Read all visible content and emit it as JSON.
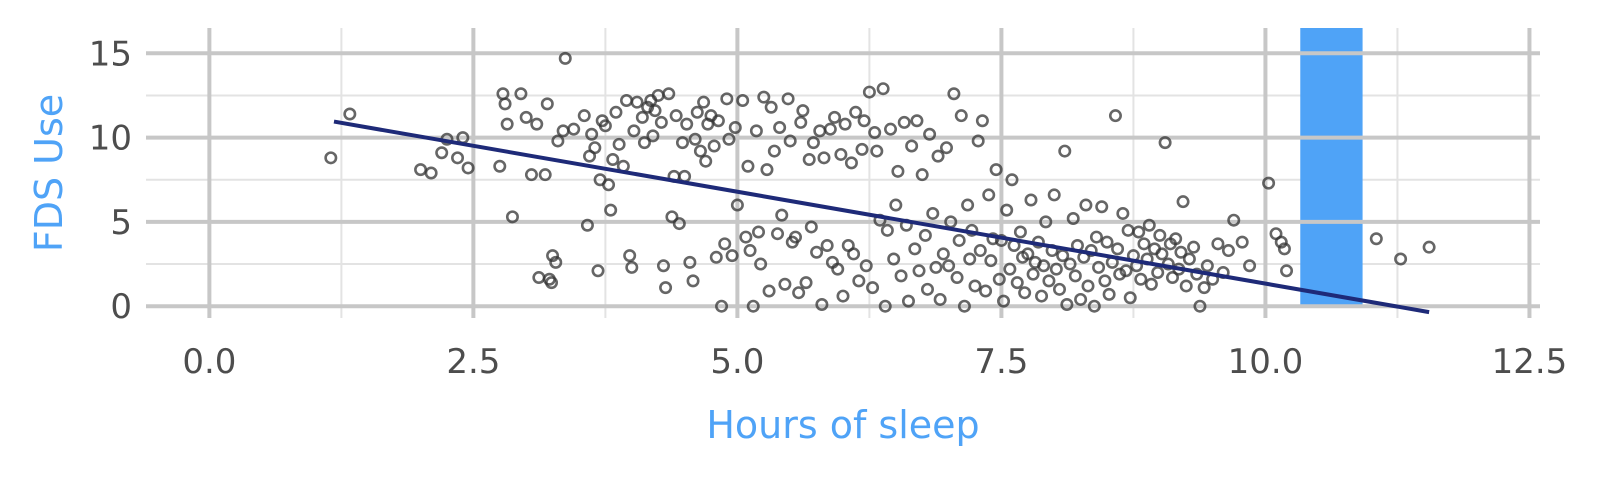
{
  "colors": {
    "axis_title": "#4FA3F7",
    "highlight_band": "#4FA3F7",
    "trend_line": "#1E2A78",
    "points": "#333333",
    "grid_major": "#c7c7c7",
    "grid_minor": "#e3e3e3",
    "tick_text": "#4d4d4d"
  },
  "chart_data": {
    "type": "scatter",
    "title": "",
    "xlabel": "Hours of sleep",
    "ylabel": "FDS Use",
    "xlim": [
      -0.6,
      12.6
    ],
    "ylim": [
      -0.7,
      16.5
    ],
    "x_ticks": [
      0,
      2.5,
      5,
      7.5,
      10,
      12.5
    ],
    "x_tick_labels": [
      "0.0",
      "2.5",
      "5.0",
      "7.5",
      "10.0",
      "12.5"
    ],
    "y_ticks": [
      0,
      5,
      10,
      15
    ],
    "y_tick_labels": [
      "0",
      "5",
      "10",
      "15"
    ],
    "x_minor_ticks": [
      1.25,
      3.75,
      6.25,
      8.75,
      11.25
    ],
    "y_minor_ticks": [
      2.5,
      7.5,
      12.5
    ],
    "grid": true,
    "legend": "none",
    "highlight_band": {
      "x_start": 10.33,
      "x_end": 10.92,
      "y_start": 0,
      "y_end": 16.5
    },
    "trend_line": {
      "x": [
        1.18,
        11.55
      ],
      "y": [
        10.95,
        -0.35
      ]
    },
    "points": [
      [
        1.15,
        8.8
      ],
      [
        1.33,
        11.4
      ],
      [
        2.0,
        8.1
      ],
      [
        2.1,
        7.9
      ],
      [
        2.2,
        9.1
      ],
      [
        2.25,
        9.9
      ],
      [
        2.35,
        8.8
      ],
      [
        2.4,
        10.0
      ],
      [
        2.45,
        8.2
      ],
      [
        2.75,
        8.3
      ],
      [
        2.78,
        12.6
      ],
      [
        2.8,
        12.0
      ],
      [
        2.82,
        10.8
      ],
      [
        2.87,
        5.3
      ],
      [
        2.95,
        12.6
      ],
      [
        3.0,
        11.2
      ],
      [
        3.05,
        7.8
      ],
      [
        3.1,
        10.8
      ],
      [
        3.12,
        1.7
      ],
      [
        3.18,
        7.8
      ],
      [
        3.2,
        12.0
      ],
      [
        3.22,
        1.6
      ],
      [
        3.24,
        1.4
      ],
      [
        3.25,
        3.0
      ],
      [
        3.28,
        2.6
      ],
      [
        3.3,
        9.8
      ],
      [
        3.35,
        10.4
      ],
      [
        3.37,
        14.7
      ],
      [
        3.45,
        10.5
      ],
      [
        3.55,
        11.3
      ],
      [
        3.58,
        4.8
      ],
      [
        3.6,
        8.9
      ],
      [
        3.62,
        10.2
      ],
      [
        3.65,
        9.4
      ],
      [
        3.68,
        2.1
      ],
      [
        3.7,
        7.5
      ],
      [
        3.72,
        11.0
      ],
      [
        3.75,
        10.7
      ],
      [
        3.78,
        7.2
      ],
      [
        3.8,
        5.7
      ],
      [
        3.82,
        8.7
      ],
      [
        3.85,
        11.5
      ],
      [
        3.88,
        9.6
      ],
      [
        3.92,
        8.3
      ],
      [
        3.95,
        12.2
      ],
      [
        3.98,
        3.0
      ],
      [
        4.0,
        2.3
      ],
      [
        4.02,
        10.4
      ],
      [
        4.05,
        12.1
      ],
      [
        4.1,
        11.2
      ],
      [
        4.12,
        9.7
      ],
      [
        4.15,
        11.8
      ],
      [
        4.18,
        12.2
      ],
      [
        4.2,
        10.1
      ],
      [
        4.22,
        11.6
      ],
      [
        4.25,
        12.5
      ],
      [
        4.28,
        10.9
      ],
      [
        4.3,
        2.4
      ],
      [
        4.32,
        1.1
      ],
      [
        4.35,
        12.6
      ],
      [
        4.38,
        5.3
      ],
      [
        4.4,
        7.7
      ],
      [
        4.42,
        11.3
      ],
      [
        4.45,
        4.9
      ],
      [
        4.48,
        9.7
      ],
      [
        4.5,
        7.7
      ],
      [
        4.52,
        10.8
      ],
      [
        4.55,
        2.6
      ],
      [
        4.58,
        1.5
      ],
      [
        4.6,
        9.9
      ],
      [
        4.62,
        11.5
      ],
      [
        4.65,
        9.2
      ],
      [
        4.68,
        12.1
      ],
      [
        4.7,
        8.6
      ],
      [
        4.72,
        10.8
      ],
      [
        4.75,
        11.3
      ],
      [
        4.78,
        9.5
      ],
      [
        4.8,
        2.9
      ],
      [
        4.82,
        11.0
      ],
      [
        4.85,
        0.0
      ],
      [
        4.88,
        3.7
      ],
      [
        4.9,
        12.3
      ],
      [
        4.92,
        9.9
      ],
      [
        4.95,
        3.0
      ],
      [
        4.98,
        10.6
      ],
      [
        5.0,
        6.0
      ],
      [
        5.05,
        12.2
      ],
      [
        5.08,
        4.1
      ],
      [
        5.1,
        8.3
      ],
      [
        5.12,
        3.3
      ],
      [
        5.15,
        0.0
      ],
      [
        5.18,
        10.4
      ],
      [
        5.2,
        4.4
      ],
      [
        5.22,
        2.5
      ],
      [
        5.25,
        12.4
      ],
      [
        5.28,
        8.1
      ],
      [
        5.3,
        0.9
      ],
      [
        5.32,
        11.8
      ],
      [
        5.35,
        9.2
      ],
      [
        5.38,
        4.3
      ],
      [
        5.4,
        10.6
      ],
      [
        5.42,
        5.4
      ],
      [
        5.45,
        1.3
      ],
      [
        5.48,
        12.3
      ],
      [
        5.5,
        9.8
      ],
      [
        5.52,
        3.8
      ],
      [
        5.55,
        4.1
      ],
      [
        5.58,
        0.8
      ],
      [
        5.6,
        10.9
      ],
      [
        5.62,
        11.6
      ],
      [
        5.65,
        1.4
      ],
      [
        5.68,
        8.7
      ],
      [
        5.7,
        4.7
      ],
      [
        5.72,
        9.7
      ],
      [
        5.75,
        3.2
      ],
      [
        5.78,
        10.4
      ],
      [
        5.8,
        0.1
      ],
      [
        5.82,
        8.8
      ],
      [
        5.85,
        3.6
      ],
      [
        5.88,
        10.5
      ],
      [
        5.9,
        2.6
      ],
      [
        5.92,
        11.2
      ],
      [
        5.95,
        2.2
      ],
      [
        5.98,
        9.0
      ],
      [
        6.0,
        0.6
      ],
      [
        6.02,
        10.8
      ],
      [
        6.05,
        3.6
      ],
      [
        6.08,
        8.5
      ],
      [
        6.1,
        3.1
      ],
      [
        6.12,
        11.5
      ],
      [
        6.15,
        1.5
      ],
      [
        6.18,
        9.3
      ],
      [
        6.2,
        11.0
      ],
      [
        6.22,
        2.4
      ],
      [
        6.25,
        12.7
      ],
      [
        6.28,
        1.1
      ],
      [
        6.3,
        10.3
      ],
      [
        6.32,
        9.2
      ],
      [
        6.35,
        5.1
      ],
      [
        6.38,
        12.9
      ],
      [
        6.4,
        0.0
      ],
      [
        6.42,
        4.5
      ],
      [
        6.45,
        10.5
      ],
      [
        6.48,
        2.8
      ],
      [
        6.5,
        6.0
      ],
      [
        6.52,
        8.0
      ],
      [
        6.55,
        1.8
      ],
      [
        6.58,
        10.9
      ],
      [
        6.6,
        4.8
      ],
      [
        6.62,
        0.3
      ],
      [
        6.65,
        9.5
      ],
      [
        6.68,
        3.4
      ],
      [
        6.7,
        11.0
      ],
      [
        6.72,
        2.1
      ],
      [
        6.75,
        7.8
      ],
      [
        6.78,
        4.2
      ],
      [
        6.8,
        1.0
      ],
      [
        6.82,
        10.2
      ],
      [
        6.85,
        5.5
      ],
      [
        6.88,
        2.3
      ],
      [
        6.9,
        8.9
      ],
      [
        6.92,
        0.4
      ],
      [
        6.95,
        3.1
      ],
      [
        6.98,
        9.4
      ],
      [
        7.0,
        2.4
      ],
      [
        7.02,
        5.0
      ],
      [
        7.05,
        12.6
      ],
      [
        7.08,
        1.7
      ],
      [
        7.1,
        3.9
      ],
      [
        7.12,
        11.3
      ],
      [
        7.15,
        0.0
      ],
      [
        7.18,
        6.0
      ],
      [
        7.2,
        2.8
      ],
      [
        7.22,
        4.5
      ],
      [
        7.25,
        1.2
      ],
      [
        7.28,
        9.8
      ],
      [
        7.3,
        3.3
      ],
      [
        7.32,
        11.0
      ],
      [
        7.35,
        0.9
      ],
      [
        7.38,
        6.6
      ],
      [
        7.4,
        2.7
      ],
      [
        7.42,
        4.0
      ],
      [
        7.45,
        8.1
      ],
      [
        7.48,
        1.6
      ],
      [
        7.5,
        3.9
      ],
      [
        7.52,
        0.3
      ],
      [
        7.55,
        5.7
      ],
      [
        7.58,
        2.2
      ],
      [
        7.6,
        7.5
      ],
      [
        7.62,
        3.6
      ],
      [
        7.65,
        1.4
      ],
      [
        7.68,
        4.4
      ],
      [
        7.7,
        2.9
      ],
      [
        7.72,
        0.8
      ],
      [
        7.75,
        3.1
      ],
      [
        7.78,
        6.3
      ],
      [
        7.8,
        1.9
      ],
      [
        7.82,
        2.6
      ],
      [
        7.85,
        3.8
      ],
      [
        7.88,
        0.6
      ],
      [
        7.9,
        2.4
      ],
      [
        7.92,
        5.0
      ],
      [
        7.95,
        1.5
      ],
      [
        7.98,
        3.3
      ],
      [
        8.0,
        6.6
      ],
      [
        8.02,
        2.2
      ],
      [
        8.05,
        1.0
      ],
      [
        8.08,
        3.0
      ],
      [
        8.1,
        9.2
      ],
      [
        8.12,
        0.1
      ],
      [
        8.15,
        2.5
      ],
      [
        8.18,
        5.2
      ],
      [
        8.2,
        1.8
      ],
      [
        8.22,
        3.6
      ],
      [
        8.25,
        0.4
      ],
      [
        8.28,
        2.9
      ],
      [
        8.3,
        6.0
      ],
      [
        8.32,
        1.2
      ],
      [
        8.35,
        3.3
      ],
      [
        8.38,
        0.0
      ],
      [
        8.4,
        4.1
      ],
      [
        8.42,
        2.3
      ],
      [
        8.45,
        5.9
      ],
      [
        8.48,
        1.5
      ],
      [
        8.5,
        3.8
      ],
      [
        8.52,
        0.7
      ],
      [
        8.55,
        2.6
      ],
      [
        8.58,
        11.3
      ],
      [
        8.6,
        3.4
      ],
      [
        8.62,
        1.9
      ],
      [
        8.65,
        5.5
      ],
      [
        8.68,
        2.1
      ],
      [
        8.7,
        4.5
      ],
      [
        8.72,
        0.5
      ],
      [
        8.75,
        3.0
      ],
      [
        8.78,
        2.4
      ],
      [
        8.8,
        4.4
      ],
      [
        8.82,
        1.6
      ],
      [
        8.85,
        3.7
      ],
      [
        8.88,
        2.8
      ],
      [
        8.9,
        4.8
      ],
      [
        8.92,
        1.3
      ],
      [
        8.95,
        3.4
      ],
      [
        8.98,
        2.0
      ],
      [
        9.0,
        4.2
      ],
      [
        9.02,
        3.1
      ],
      [
        9.05,
        9.7
      ],
      [
        9.08,
        2.5
      ],
      [
        9.1,
        3.7
      ],
      [
        9.12,
        1.7
      ],
      [
        9.15,
        4.0
      ],
      [
        9.18,
        2.2
      ],
      [
        9.2,
        3.2
      ],
      [
        9.22,
        6.2
      ],
      [
        9.25,
        1.2
      ],
      [
        9.28,
        2.8
      ],
      [
        9.32,
        3.5
      ],
      [
        9.35,
        1.9
      ],
      [
        9.38,
        0.0
      ],
      [
        9.42,
        1.1
      ],
      [
        9.45,
        2.4
      ],
      [
        9.5,
        1.6
      ],
      [
        9.55,
        3.7
      ],
      [
        9.6,
        2.0
      ],
      [
        9.65,
        3.3
      ],
      [
        9.7,
        5.1
      ],
      [
        9.78,
        3.8
      ],
      [
        9.85,
        2.4
      ],
      [
        10.03,
        7.3
      ],
      [
        10.1,
        4.3
      ],
      [
        10.15,
        3.8
      ],
      [
        10.18,
        3.4
      ],
      [
        10.2,
        2.1
      ],
      [
        11.05,
        4.0
      ],
      [
        11.28,
        2.8
      ],
      [
        11.55,
        3.5
      ]
    ]
  }
}
